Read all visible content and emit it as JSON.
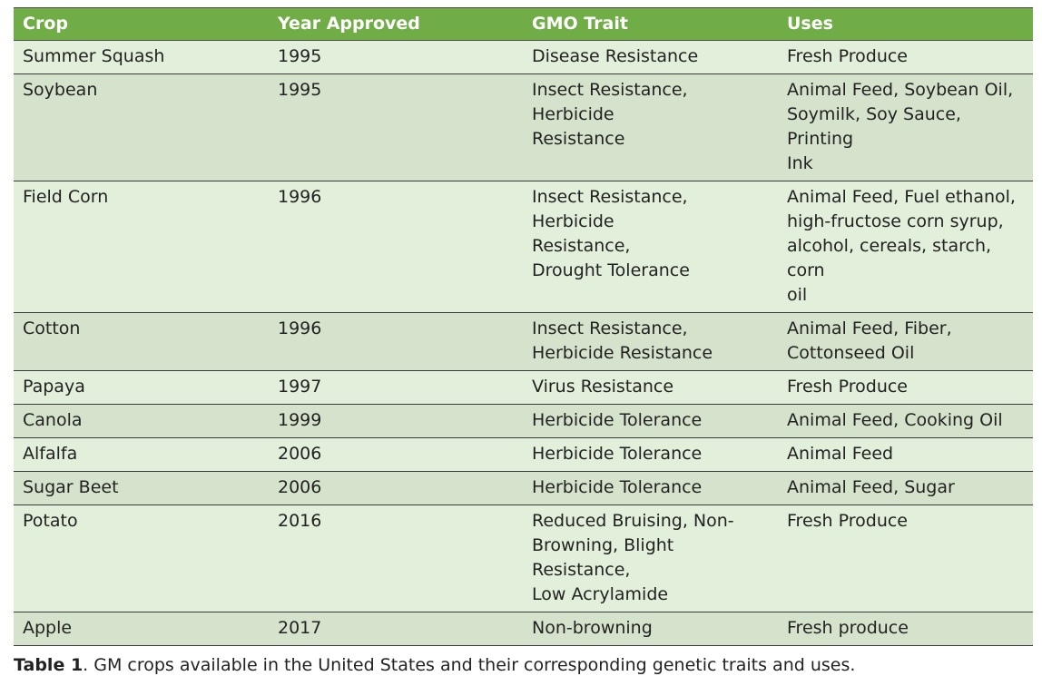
{
  "table": {
    "headers": [
      "Crop",
      "Year Approved",
      "GMO Trait",
      "Uses"
    ],
    "rows": [
      {
        "crop": "Summer Squash",
        "year": "1995",
        "trait": "Disease Resistance",
        "uses": "Fresh Produce"
      },
      {
        "crop": "Soybean",
        "year": "1995",
        "trait": "Insect Resistance, Herbicide\nResistance",
        "uses": "Animal Feed, Soybean Oil,\nSoymilk, Soy Sauce, Printing\nInk"
      },
      {
        "crop": "Field Corn",
        "year": "1996",
        "trait": "Insect Resistance, Herbicide\nResistance,\nDrought Tolerance",
        "uses": "Animal Feed, Fuel ethanol,\nhigh-fructose corn syrup,\nalcohol, cereals, starch, corn\noil"
      },
      {
        "crop": "Cotton",
        "year": "1996",
        "trait": "Insect Resistance,\nHerbicide Resistance",
        "uses": "Animal Feed, Fiber,\nCottonseed Oil"
      },
      {
        "crop": "Papaya",
        "year": "1997",
        "trait": "Virus Resistance",
        "uses": "Fresh Produce"
      },
      {
        "crop": "Canola",
        "year": "1999",
        "trait": "Herbicide Tolerance",
        "uses": "Animal Feed, Cooking Oil"
      },
      {
        "crop": "Alfalfa",
        "year": "2006",
        "trait": "Herbicide Tolerance",
        "uses": "Animal Feed"
      },
      {
        "crop": "Sugar Beet",
        "year": "2006",
        "trait": "Herbicide Tolerance",
        "uses": "Animal Feed, Sugar"
      },
      {
        "crop": "Potato",
        "year": "2016",
        "trait": "Reduced Bruising, Non-\nBrowning, Blight Resistance,\nLow Acrylamide",
        "uses": "Fresh Produce"
      },
      {
        "crop": "Apple",
        "year": "2017",
        "trait": "Non-browning",
        "uses": "Fresh produce"
      }
    ]
  },
  "caption": {
    "label": "Table 1",
    "text": ". GM crops available in the United States and their corresponding genetic traits and uses."
  },
  "colors": {
    "header_bg": "#70ad47",
    "header_text": "#ffffff",
    "row_odd_bg": "#e2efda",
    "row_even_bg": "#d6e3cc",
    "border": "#3a3a3a"
  }
}
